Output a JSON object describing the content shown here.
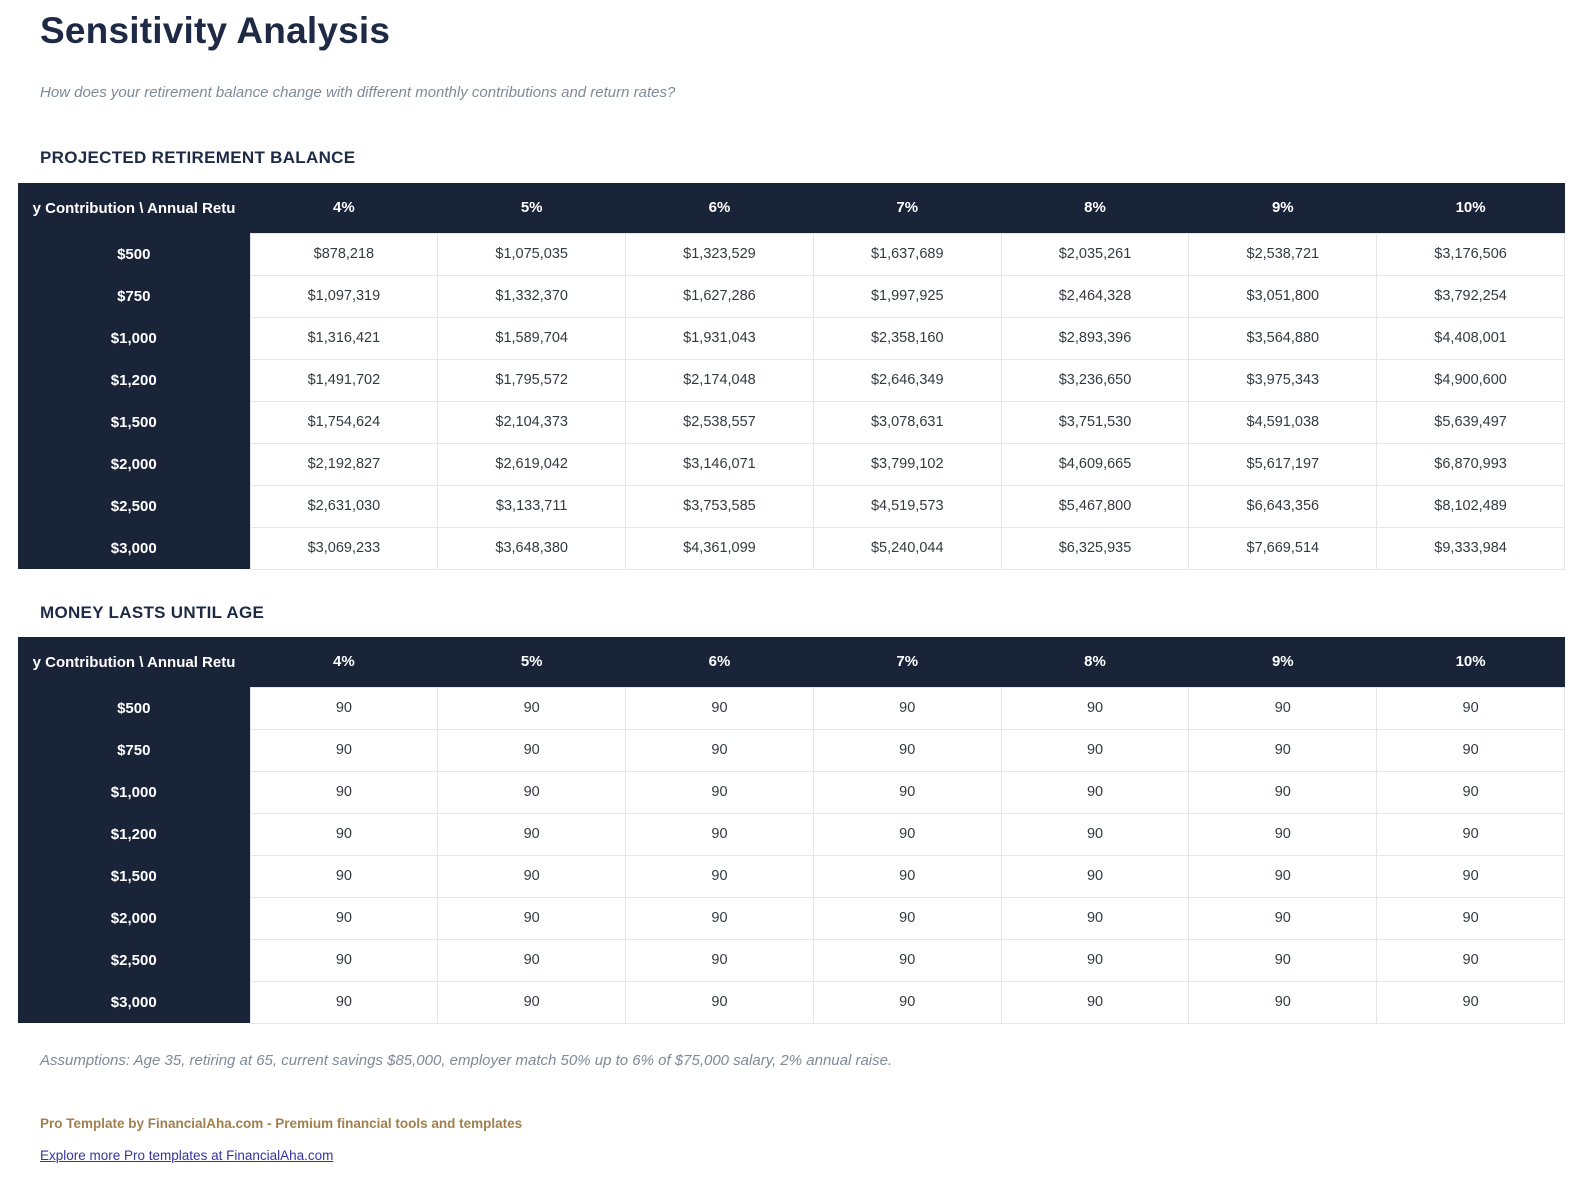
{
  "page": {
    "title": "Sensitivity Analysis",
    "subtitle": "How does your retirement balance change with different monthly contributions and return rates?"
  },
  "colors": {
    "header_navy": "#1a2438",
    "heading_text": "#1e2a45",
    "subtitle_gray": "#7e8a98",
    "cell_border": "#e5e5ec",
    "cell_text": "#343a42",
    "brand_brown": "#a1804d",
    "link_indigo": "#3434a6"
  },
  "tables_shared": {
    "corner_label": "y Contribution \\ Annual Retu",
    "rate_headers": [
      "4%",
      "5%",
      "6%",
      "7%",
      "8%",
      "9%",
      "10%"
    ],
    "contributions": [
      "$500",
      "$750",
      "$1,000",
      "$1,200",
      "$1,500",
      "$2,000",
      "$2,500",
      "$3,000"
    ]
  },
  "balance_table": {
    "heading": "PROJECTED RETIREMENT BALANCE",
    "rows": [
      [
        "$878,218",
        "$1,075,035",
        "$1,323,529",
        "$1,637,689",
        "$2,035,261",
        "$2,538,721",
        "$3,176,506"
      ],
      [
        "$1,097,319",
        "$1,332,370",
        "$1,627,286",
        "$1,997,925",
        "$2,464,328",
        "$3,051,800",
        "$3,792,254"
      ],
      [
        "$1,316,421",
        "$1,589,704",
        "$1,931,043",
        "$2,358,160",
        "$2,893,396",
        "$3,564,880",
        "$4,408,001"
      ],
      [
        "$1,491,702",
        "$1,795,572",
        "$2,174,048",
        "$2,646,349",
        "$3,236,650",
        "$3,975,343",
        "$4,900,600"
      ],
      [
        "$1,754,624",
        "$2,104,373",
        "$2,538,557",
        "$3,078,631",
        "$3,751,530",
        "$4,591,038",
        "$5,639,497"
      ],
      [
        "$2,192,827",
        "$2,619,042",
        "$3,146,071",
        "$3,799,102",
        "$4,609,665",
        "$5,617,197",
        "$6,870,993"
      ],
      [
        "$2,631,030",
        "$3,133,711",
        "$3,753,585",
        "$4,519,573",
        "$5,467,800",
        "$6,643,356",
        "$8,102,489"
      ],
      [
        "$3,069,233",
        "$3,648,380",
        "$4,361,099",
        "$5,240,044",
        "$6,325,935",
        "$7,669,514",
        "$9,333,984"
      ]
    ]
  },
  "age_table": {
    "heading": "MONEY LASTS UNTIL AGE",
    "rows": [
      [
        "90",
        "90",
        "90",
        "90",
        "90",
        "90",
        "90"
      ],
      [
        "90",
        "90",
        "90",
        "90",
        "90",
        "90",
        "90"
      ],
      [
        "90",
        "90",
        "90",
        "90",
        "90",
        "90",
        "90"
      ],
      [
        "90",
        "90",
        "90",
        "90",
        "90",
        "90",
        "90"
      ],
      [
        "90",
        "90",
        "90",
        "90",
        "90",
        "90",
        "90"
      ],
      [
        "90",
        "90",
        "90",
        "90",
        "90",
        "90",
        "90"
      ],
      [
        "90",
        "90",
        "90",
        "90",
        "90",
        "90",
        "90"
      ],
      [
        "90",
        "90",
        "90",
        "90",
        "90",
        "90",
        "90"
      ]
    ]
  },
  "footer": {
    "assumptions": "Assumptions: Age 35, retiring at 65, current savings $85,000, employer match 50% up to 6% of $75,000 salary, 2% annual raise.",
    "brand": "Pro Template by FinancialAha.com - Premium financial tools and templates",
    "link": "Explore more Pro templates at FinancialAha.com"
  }
}
